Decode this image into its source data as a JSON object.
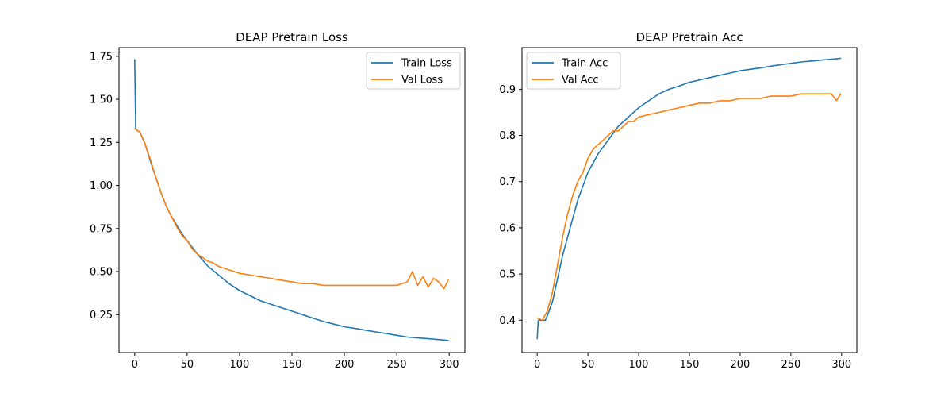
{
  "chart_data": [
    {
      "type": "line",
      "title": "DEAP Pretrain Loss",
      "xlabel": "",
      "ylabel": "",
      "xlim": [
        -15,
        315
      ],
      "ylim": [
        0.03,
        1.8
      ],
      "xticks": [
        0,
        50,
        100,
        150,
        200,
        250,
        300
      ],
      "yticks": [
        0.25,
        0.5,
        0.75,
        1.0,
        1.25,
        1.5,
        1.75
      ],
      "ytick_labels": [
        "0.25",
        "0.50",
        "0.75",
        "1.00",
        "1.25",
        "1.50",
        "1.75"
      ],
      "legend_position": "upper-right",
      "grid": false,
      "series": [
        {
          "name": "Train Loss",
          "color": "#1f77b4",
          "x": [
            0,
            1,
            2,
            5,
            10,
            15,
            20,
            25,
            30,
            35,
            40,
            45,
            50,
            60,
            70,
            80,
            90,
            100,
            110,
            120,
            130,
            140,
            150,
            160,
            170,
            180,
            190,
            200,
            210,
            220,
            230,
            240,
            250,
            260,
            270,
            280,
            290,
            299
          ],
          "y": [
            1.73,
            1.33,
            1.32,
            1.31,
            1.24,
            1.14,
            1.05,
            0.96,
            0.88,
            0.82,
            0.77,
            0.72,
            0.68,
            0.6,
            0.53,
            0.48,
            0.43,
            0.39,
            0.36,
            0.33,
            0.31,
            0.29,
            0.27,
            0.25,
            0.23,
            0.21,
            0.195,
            0.18,
            0.17,
            0.16,
            0.15,
            0.14,
            0.13,
            0.12,
            0.115,
            0.11,
            0.105,
            0.1
          ]
        },
        {
          "name": "Val Loss",
          "color": "#ff7f0e",
          "x": [
            0,
            5,
            10,
            15,
            20,
            25,
            30,
            35,
            40,
            45,
            50,
            55,
            60,
            65,
            70,
            75,
            80,
            85,
            90,
            95,
            100,
            110,
            120,
            130,
            140,
            150,
            160,
            170,
            180,
            190,
            200,
            210,
            220,
            230,
            240,
            250,
            255,
            260,
            265,
            270,
            275,
            280,
            285,
            290,
            295,
            299
          ],
          "y": [
            1.33,
            1.31,
            1.24,
            1.15,
            1.05,
            0.96,
            0.88,
            0.82,
            0.76,
            0.71,
            0.68,
            0.63,
            0.6,
            0.58,
            0.56,
            0.55,
            0.53,
            0.52,
            0.51,
            0.5,
            0.49,
            0.48,
            0.47,
            0.46,
            0.45,
            0.44,
            0.43,
            0.43,
            0.42,
            0.42,
            0.42,
            0.42,
            0.42,
            0.42,
            0.42,
            0.42,
            0.43,
            0.44,
            0.5,
            0.42,
            0.47,
            0.41,
            0.46,
            0.44,
            0.4,
            0.45
          ]
        }
      ]
    },
    {
      "type": "line",
      "title": "DEAP Pretrain Acc",
      "xlabel": "",
      "ylabel": "",
      "xlim": [
        -15,
        315
      ],
      "ylim": [
        0.33,
        0.99
      ],
      "xticks": [
        0,
        50,
        100,
        150,
        200,
        250,
        300
      ],
      "yticks": [
        0.4,
        0.5,
        0.6,
        0.7,
        0.8,
        0.9
      ],
      "ytick_labels": [
        "0.4",
        "0.5",
        "0.6",
        "0.7",
        "0.8",
        "0.9"
      ],
      "legend_position": "upper-left",
      "grid": false,
      "series": [
        {
          "name": "Train Acc",
          "color": "#1f77b4",
          "x": [
            0,
            1,
            2,
            5,
            8,
            10,
            15,
            20,
            25,
            30,
            35,
            40,
            45,
            50,
            60,
            70,
            80,
            90,
            100,
            110,
            120,
            130,
            140,
            150,
            160,
            170,
            180,
            190,
            200,
            210,
            220,
            230,
            240,
            250,
            260,
            270,
            280,
            290,
            299
          ],
          "y": [
            0.36,
            0.4,
            0.4,
            0.4,
            0.4,
            0.41,
            0.44,
            0.49,
            0.54,
            0.58,
            0.62,
            0.66,
            0.69,
            0.72,
            0.76,
            0.79,
            0.82,
            0.84,
            0.86,
            0.875,
            0.89,
            0.9,
            0.907,
            0.915,
            0.92,
            0.925,
            0.93,
            0.935,
            0.94,
            0.943,
            0.946,
            0.95,
            0.953,
            0.956,
            0.959,
            0.961,
            0.963,
            0.965,
            0.967
          ]
        },
        {
          "name": "Val Acc",
          "color": "#ff7f0e",
          "x": [
            0,
            5,
            10,
            15,
            20,
            25,
            30,
            35,
            40,
            45,
            50,
            55,
            60,
            65,
            70,
            75,
            80,
            85,
            90,
            95,
            100,
            110,
            120,
            130,
            140,
            150,
            160,
            170,
            180,
            190,
            200,
            210,
            220,
            230,
            240,
            250,
            260,
            270,
            280,
            290,
            295,
            299
          ],
          "y": [
            0.405,
            0.4,
            0.42,
            0.46,
            0.52,
            0.58,
            0.63,
            0.67,
            0.7,
            0.72,
            0.75,
            0.77,
            0.78,
            0.79,
            0.8,
            0.81,
            0.81,
            0.82,
            0.83,
            0.83,
            0.84,
            0.845,
            0.85,
            0.855,
            0.86,
            0.865,
            0.87,
            0.87,
            0.875,
            0.875,
            0.88,
            0.88,
            0.88,
            0.885,
            0.885,
            0.885,
            0.89,
            0.89,
            0.89,
            0.89,
            0.875,
            0.89
          ]
        }
      ]
    }
  ]
}
